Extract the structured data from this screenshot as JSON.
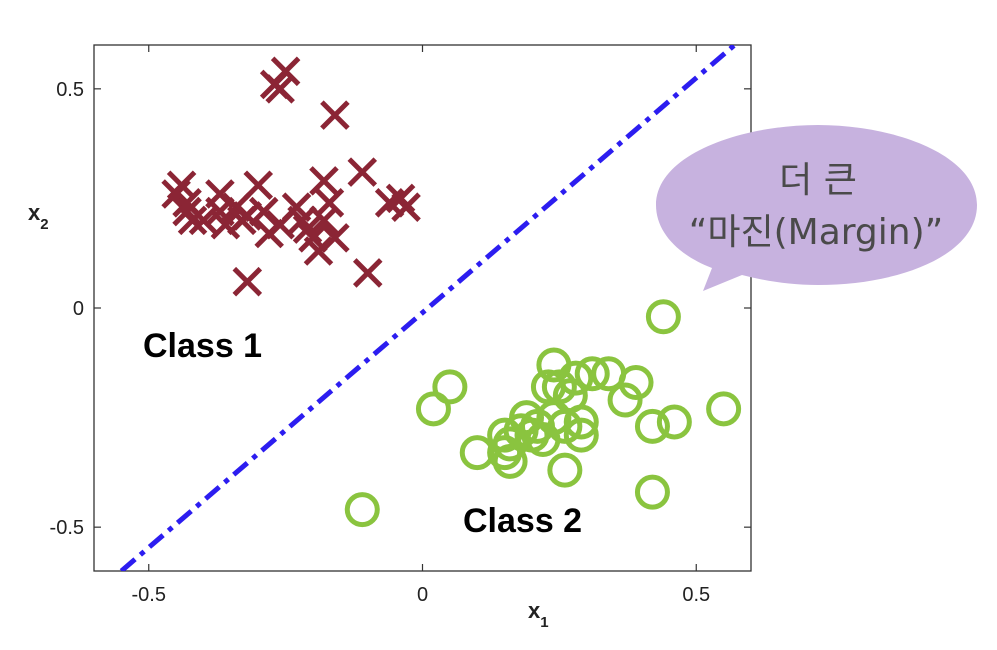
{
  "chart_data": {
    "type": "scatter",
    "xlabel": "x",
    "xlabel_sub": "1",
    "ylabel": "x",
    "ylabel_sub": "2",
    "xlim": [
      -0.6,
      0.6
    ],
    "ylim": [
      -0.6,
      0.6
    ],
    "xticks": [
      -0.5,
      0,
      0.5
    ],
    "xtick_labels": [
      "-0.5",
      "0",
      "0.5"
    ],
    "yticks": [
      -0.5,
      0,
      0.5
    ],
    "ytick_labels": [
      "-0.5",
      "0",
      "0.5"
    ],
    "grid": false,
    "series": [
      {
        "marker": "x",
        "color": "#8b2535",
        "points": [
          [
            -0.25,
            0.54
          ],
          [
            -0.27,
            0.51
          ],
          [
            -0.26,
            0.5
          ],
          [
            -0.16,
            0.44
          ],
          [
            -0.44,
            0.28
          ],
          [
            -0.45,
            0.26
          ],
          [
            -0.43,
            0.24
          ],
          [
            -0.43,
            0.22
          ],
          [
            -0.42,
            0.2
          ],
          [
            -0.4,
            0.2
          ],
          [
            -0.37,
            0.26
          ],
          [
            -0.37,
            0.22
          ],
          [
            -0.36,
            0.19
          ],
          [
            -0.34,
            0.23
          ],
          [
            -0.33,
            0.2
          ],
          [
            -0.32,
            0.21
          ],
          [
            -0.3,
            0.28
          ],
          [
            -0.29,
            0.22
          ],
          [
            -0.28,
            0.17
          ],
          [
            -0.26,
            0.19
          ],
          [
            -0.23,
            0.23
          ],
          [
            -0.22,
            0.2
          ],
          [
            -0.21,
            0.18
          ],
          [
            -0.2,
            0.16
          ],
          [
            -0.19,
            0.13
          ],
          [
            -0.18,
            0.2
          ],
          [
            -0.18,
            0.29
          ],
          [
            -0.17,
            0.24
          ],
          [
            -0.16,
            0.16
          ],
          [
            -0.11,
            0.31
          ],
          [
            -0.06,
            0.24
          ],
          [
            -0.04,
            0.25
          ],
          [
            -0.03,
            0.23
          ],
          [
            -0.32,
            0.06
          ],
          [
            -0.1,
            0.08
          ]
        ]
      },
      {
        "marker": "o",
        "color": "#8ac43f",
        "points": [
          [
            0.44,
            -0.02
          ],
          [
            0.24,
            -0.13
          ],
          [
            0.28,
            -0.16
          ],
          [
            0.31,
            -0.15
          ],
          [
            0.34,
            -0.15
          ],
          [
            0.39,
            -0.17
          ],
          [
            0.25,
            -0.18
          ],
          [
            0.23,
            -0.18
          ],
          [
            0.27,
            -0.2
          ],
          [
            0.05,
            -0.18
          ],
          [
            0.02,
            -0.23
          ],
          [
            0.37,
            -0.21
          ],
          [
            0.42,
            -0.27
          ],
          [
            0.46,
            -0.26
          ],
          [
            0.55,
            -0.23
          ],
          [
            0.19,
            -0.25
          ],
          [
            0.21,
            -0.27
          ],
          [
            0.24,
            -0.25
          ],
          [
            0.26,
            -0.27
          ],
          [
            0.29,
            -0.26
          ],
          [
            0.29,
            -0.29
          ],
          [
            0.22,
            -0.3
          ],
          [
            0.2,
            -0.29
          ],
          [
            0.18,
            -0.28
          ],
          [
            0.15,
            -0.29
          ],
          [
            0.16,
            -0.31
          ],
          [
            0.16,
            -0.35
          ],
          [
            0.1,
            -0.33
          ],
          [
            0.26,
            -0.37
          ],
          [
            0.42,
            -0.42
          ],
          [
            -0.11,
            -0.46
          ],
          [
            0.15,
            -0.33
          ]
        ]
      }
    ],
    "decision_line": {
      "style": "dash-dot",
      "color": "#2c1df0",
      "from": [
        -0.55,
        -0.6
      ],
      "to": [
        0.57,
        0.6
      ]
    },
    "annotations": {
      "class1": "Class 1",
      "class2": "Class 2",
      "bubble_line1": "더 큰",
      "bubble_line2": "“마진(Margin)”",
      "bubble_color": "#c7b2df"
    }
  }
}
